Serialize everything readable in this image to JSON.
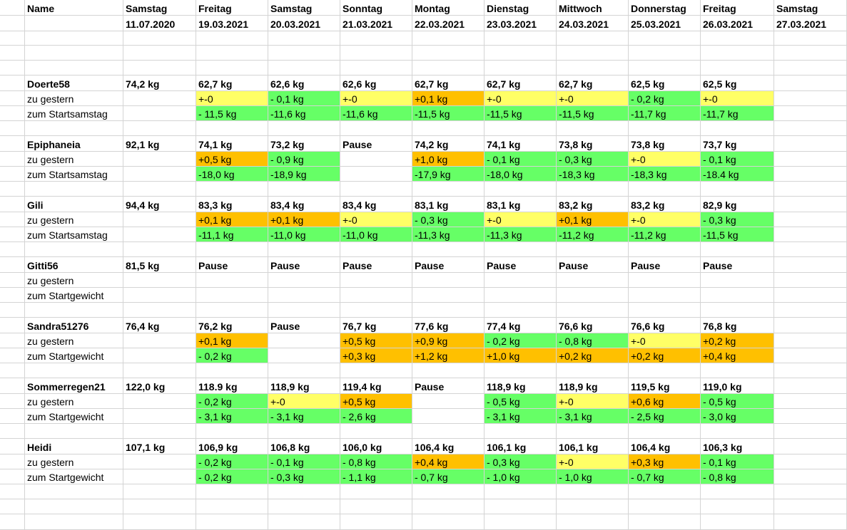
{
  "colors": {
    "green": "#66ff66",
    "yellow": "#ffff66",
    "orange": "#ffc000",
    "grid": "#d4d4d4"
  },
  "header": {
    "name_label": "Name",
    "days": [
      {
        "weekday": "Samstag",
        "date": "11.07.2020"
      },
      {
        "weekday": "Freitag",
        "date": "19.03.2021"
      },
      {
        "weekday": "Samstag",
        "date": "20.03.2021"
      },
      {
        "weekday": "Sonntag",
        "date": "21.03.2021"
      },
      {
        "weekday": "Montag",
        "date": "22.03.2021"
      },
      {
        "weekday": "Dienstag",
        "date": "23.03.2021"
      },
      {
        "weekday": "Mittwoch",
        "date": "24.03.2021"
      },
      {
        "weekday": "Donnerstag",
        "date": "25.03.2021"
      },
      {
        "weekday": "Freitag",
        "date": "26.03.2021"
      },
      {
        "weekday": "Samstag",
        "date": "27.03.2021"
      }
    ]
  },
  "participants": [
    {
      "name": "Doerte58",
      "weights": [
        "74,2 kg",
        "62,7 kg",
        "62,6 kg",
        "62,6 kg",
        "62,7 kg",
        "62,7 kg",
        "62,7 kg",
        "62,5 kg",
        "62,5 kg",
        ""
      ],
      "row2_label": "zu gestern",
      "row2": [
        {
          "v": "",
          "c": ""
        },
        {
          "v": "+-0",
          "c": "yellow"
        },
        {
          "v": "- 0,1 kg",
          "c": "green"
        },
        {
          "v": "+-0",
          "c": "yellow"
        },
        {
          "v": "+0,1 kg",
          "c": "orange"
        },
        {
          "v": "+-0",
          "c": "yellow"
        },
        {
          "v": "+-0",
          "c": "yellow"
        },
        {
          "v": "- 0,2 kg",
          "c": "green"
        },
        {
          "v": "+-0",
          "c": "yellow"
        },
        {
          "v": "",
          "c": ""
        }
      ],
      "row3_label": "zum Startsamstag",
      "row3": [
        {
          "v": "",
          "c": ""
        },
        {
          "v": "- 11,5 kg",
          "c": "green"
        },
        {
          "v": "-11,6 kg",
          "c": "green"
        },
        {
          "v": "-11,6 kg",
          "c": "green"
        },
        {
          "v": "-11,5 kg",
          "c": "green"
        },
        {
          "v": "-11,5 kg",
          "c": "green"
        },
        {
          "v": "-11,5 kg",
          "c": "green"
        },
        {
          "v": "-11,7 kg",
          "c": "green"
        },
        {
          "v": "-11,7 kg",
          "c": "green"
        },
        {
          "v": "",
          "c": ""
        }
      ]
    },
    {
      "name": "Epiphaneia",
      "weights": [
        "92,1 kg",
        "74,1 kg",
        "73,2 kg",
        "Pause",
        "74,2 kg",
        "74,1 kg",
        "73,8 kg",
        "73,8 kg",
        "73,7 kg",
        ""
      ],
      "row2_label": "zu gestern",
      "row2": [
        {
          "v": "",
          "c": ""
        },
        {
          "v": "+0,5 kg",
          "c": "orange"
        },
        {
          "v": "- 0,9 kg",
          "c": "green"
        },
        {
          "v": "",
          "c": ""
        },
        {
          "v": "+1,0 kg",
          "c": "orange"
        },
        {
          "v": "- 0,1 kg",
          "c": "green"
        },
        {
          "v": "- 0,3 kg",
          "c": "green"
        },
        {
          "v": "+-0",
          "c": "yellow"
        },
        {
          "v": "- 0,1 kg",
          "c": "green"
        },
        {
          "v": "",
          "c": ""
        }
      ],
      "row3_label": "zum Startsamstag",
      "row3": [
        {
          "v": "",
          "c": ""
        },
        {
          "v": "-18,0 kg",
          "c": "green"
        },
        {
          "v": "-18,9 kg",
          "c": "green"
        },
        {
          "v": "",
          "c": ""
        },
        {
          "v": "-17,9 kg",
          "c": "green"
        },
        {
          "v": "-18,0 kg",
          "c": "green"
        },
        {
          "v": "-18,3 kg",
          "c": "green"
        },
        {
          "v": "-18,3 kg",
          "c": "green"
        },
        {
          "v": "-18.4 kg",
          "c": "green"
        },
        {
          "v": "",
          "c": ""
        }
      ]
    },
    {
      "name": "Gili",
      "weights": [
        "94,4 kg",
        "83,3 kg",
        "83,4 kg",
        "83,4 kg",
        "83,1 kg",
        "83,1 kg",
        "83,2 kg",
        "83,2 kg",
        "82,9 kg",
        ""
      ],
      "row2_label": "zu gestern",
      "row2": [
        {
          "v": "",
          "c": ""
        },
        {
          "v": "+0,1 kg",
          "c": "orange"
        },
        {
          "v": "+0,1 kg",
          "c": "orange"
        },
        {
          "v": "+-0",
          "c": "yellow"
        },
        {
          "v": "- 0,3 kg",
          "c": "green"
        },
        {
          "v": "+-0",
          "c": "yellow"
        },
        {
          "v": "+0,1 kg",
          "c": "orange"
        },
        {
          "v": "+-0",
          "c": "yellow"
        },
        {
          "v": "- 0,3 kg",
          "c": "green"
        },
        {
          "v": "",
          "c": ""
        }
      ],
      "row3_label": "zum Startsamstag",
      "row3": [
        {
          "v": "",
          "c": ""
        },
        {
          "v": "-11,1 kg",
          "c": "green"
        },
        {
          "v": "-11,0 kg",
          "c": "green"
        },
        {
          "v": "-11,0 kg",
          "c": "green"
        },
        {
          "v": "-11,3 kg",
          "c": "green"
        },
        {
          "v": "-11,3 kg",
          "c": "green"
        },
        {
          "v": "-11,2 kg",
          "c": "green"
        },
        {
          "v": "-11,2 kg",
          "c": "green"
        },
        {
          "v": "-11,5 kg",
          "c": "green"
        },
        {
          "v": "",
          "c": ""
        }
      ]
    },
    {
      "name": "Gitti56",
      "weights": [
        "81,5 kg",
        "Pause",
        "Pause",
        "Pause",
        "Pause",
        "Pause",
        "Pause",
        "Pause",
        "Pause",
        ""
      ],
      "row2_label": "zu gestern",
      "row2": [
        {
          "v": "",
          "c": ""
        },
        {
          "v": "",
          "c": ""
        },
        {
          "v": "",
          "c": ""
        },
        {
          "v": "",
          "c": ""
        },
        {
          "v": "",
          "c": ""
        },
        {
          "v": "",
          "c": ""
        },
        {
          "v": "",
          "c": ""
        },
        {
          "v": "",
          "c": ""
        },
        {
          "v": "",
          "c": ""
        },
        {
          "v": "",
          "c": ""
        }
      ],
      "row3_label": "zum Startgewicht",
      "row3": [
        {
          "v": "",
          "c": ""
        },
        {
          "v": "",
          "c": ""
        },
        {
          "v": "",
          "c": ""
        },
        {
          "v": "",
          "c": ""
        },
        {
          "v": "",
          "c": ""
        },
        {
          "v": "",
          "c": ""
        },
        {
          "v": "",
          "c": ""
        },
        {
          "v": "",
          "c": ""
        },
        {
          "v": "",
          "c": ""
        },
        {
          "v": "",
          "c": ""
        }
      ]
    },
    {
      "name": "Sandra51276",
      "weights": [
        "76,4 kg",
        "76,2 kg",
        "Pause",
        "76,7 kg",
        "77,6 kg",
        "77,4 kg",
        "76,6 kg",
        "76,6 kg",
        "76,8 kg",
        ""
      ],
      "row2_label": "zu gestern",
      "row2": [
        {
          "v": "",
          "c": ""
        },
        {
          "v": "+0,1 kg",
          "c": "orange"
        },
        {
          "v": "",
          "c": ""
        },
        {
          "v": "+0,5 kg",
          "c": "orange"
        },
        {
          "v": "+0,9 kg",
          "c": "orange"
        },
        {
          "v": "- 0,2 kg",
          "c": "green"
        },
        {
          "v": "- 0,8 kg",
          "c": "green"
        },
        {
          "v": "+-0",
          "c": "yellow"
        },
        {
          "v": "+0,2 kg",
          "c": "orange"
        },
        {
          "v": "",
          "c": ""
        }
      ],
      "row3_label": "zum Startgewicht",
      "row3": [
        {
          "v": "",
          "c": ""
        },
        {
          "v": "- 0,2 kg",
          "c": "green"
        },
        {
          "v": "",
          "c": ""
        },
        {
          "v": "+0,3 kg",
          "c": "orange"
        },
        {
          "v": "+1,2 kg",
          "c": "orange"
        },
        {
          "v": "+1,0 kg",
          "c": "orange"
        },
        {
          "v": "+0,2 kg",
          "c": "orange"
        },
        {
          "v": "+0,2 kg",
          "c": "orange"
        },
        {
          "v": "+0,4 kg",
          "c": "orange"
        },
        {
          "v": "",
          "c": ""
        }
      ]
    },
    {
      "name": "Sommerregen21",
      "weights": [
        "122,0 kg",
        "118.9 kg",
        "118,9 kg",
        "119,4 kg",
        "Pause",
        "118,9 kg",
        "118,9 kg",
        "119,5 kg",
        "119,0 kg",
        ""
      ],
      "row2_label": "zu gestern",
      "row2": [
        {
          "v": "",
          "c": ""
        },
        {
          "v": "- 0,2 kg",
          "c": "green"
        },
        {
          "v": "+-0",
          "c": "yellow"
        },
        {
          "v": "+0,5 kg",
          "c": "orange"
        },
        {
          "v": "",
          "c": ""
        },
        {
          "v": "- 0,5 kg",
          "c": "green"
        },
        {
          "v": "+-0",
          "c": "yellow"
        },
        {
          "v": "+0,6 kg",
          "c": "orange"
        },
        {
          "v": "- 0,5 kg",
          "c": "green"
        },
        {
          "v": "",
          "c": ""
        }
      ],
      "row3_label": "zum Startgewicht",
      "row3": [
        {
          "v": "",
          "c": ""
        },
        {
          "v": "- 3,1 kg",
          "c": "green"
        },
        {
          "v": "- 3,1 kg",
          "c": "green"
        },
        {
          "v": "- 2,6 kg",
          "c": "green"
        },
        {
          "v": "",
          "c": ""
        },
        {
          "v": "- 3,1 kg",
          "c": "green"
        },
        {
          "v": "- 3,1 kg",
          "c": "green"
        },
        {
          "v": "- 2,5 kg",
          "c": "green"
        },
        {
          "v": "- 3,0 kg",
          "c": "green"
        },
        {
          "v": "",
          "c": ""
        }
      ]
    },
    {
      "name": "Heidi",
      "weights": [
        "107,1 kg",
        "106,9 kg",
        "106,8 kg",
        "106,0 kg",
        "106,4 kg",
        "106,1 kg",
        "106,1 kg",
        "106,4 kg",
        "106,3 kg",
        ""
      ],
      "row2_label": "zu gestern",
      "row2": [
        {
          "v": "",
          "c": ""
        },
        {
          "v": "- 0,2 kg",
          "c": "green"
        },
        {
          "v": "- 0,1 kg",
          "c": "green"
        },
        {
          "v": "- 0,8 kg",
          "c": "green"
        },
        {
          "v": "+0,4 kg",
          "c": "orange"
        },
        {
          "v": "- 0,3 kg",
          "c": "green"
        },
        {
          "v": "+-0",
          "c": "yellow"
        },
        {
          "v": "+0,3 kg",
          "c": "orange"
        },
        {
          "v": "- 0,1 kg",
          "c": "green"
        },
        {
          "v": "",
          "c": ""
        }
      ],
      "row3_label": "zum Startgewicht",
      "row3": [
        {
          "v": "",
          "c": ""
        },
        {
          "v": "- 0,2 kg",
          "c": "green"
        },
        {
          "v": "- 0,3 kg",
          "c": "green"
        },
        {
          "v": "- 1,1 kg",
          "c": "green"
        },
        {
          "v": "- 0,7 kg",
          "c": "green"
        },
        {
          "v": "- 1,0 kg",
          "c": "green"
        },
        {
          "v": "- 1,0 kg",
          "c": "green"
        },
        {
          "v": "- 0,7 kg",
          "c": "green"
        },
        {
          "v": "- 0,8 kg",
          "c": "green"
        },
        {
          "v": "",
          "c": ""
        }
      ]
    }
  ]
}
